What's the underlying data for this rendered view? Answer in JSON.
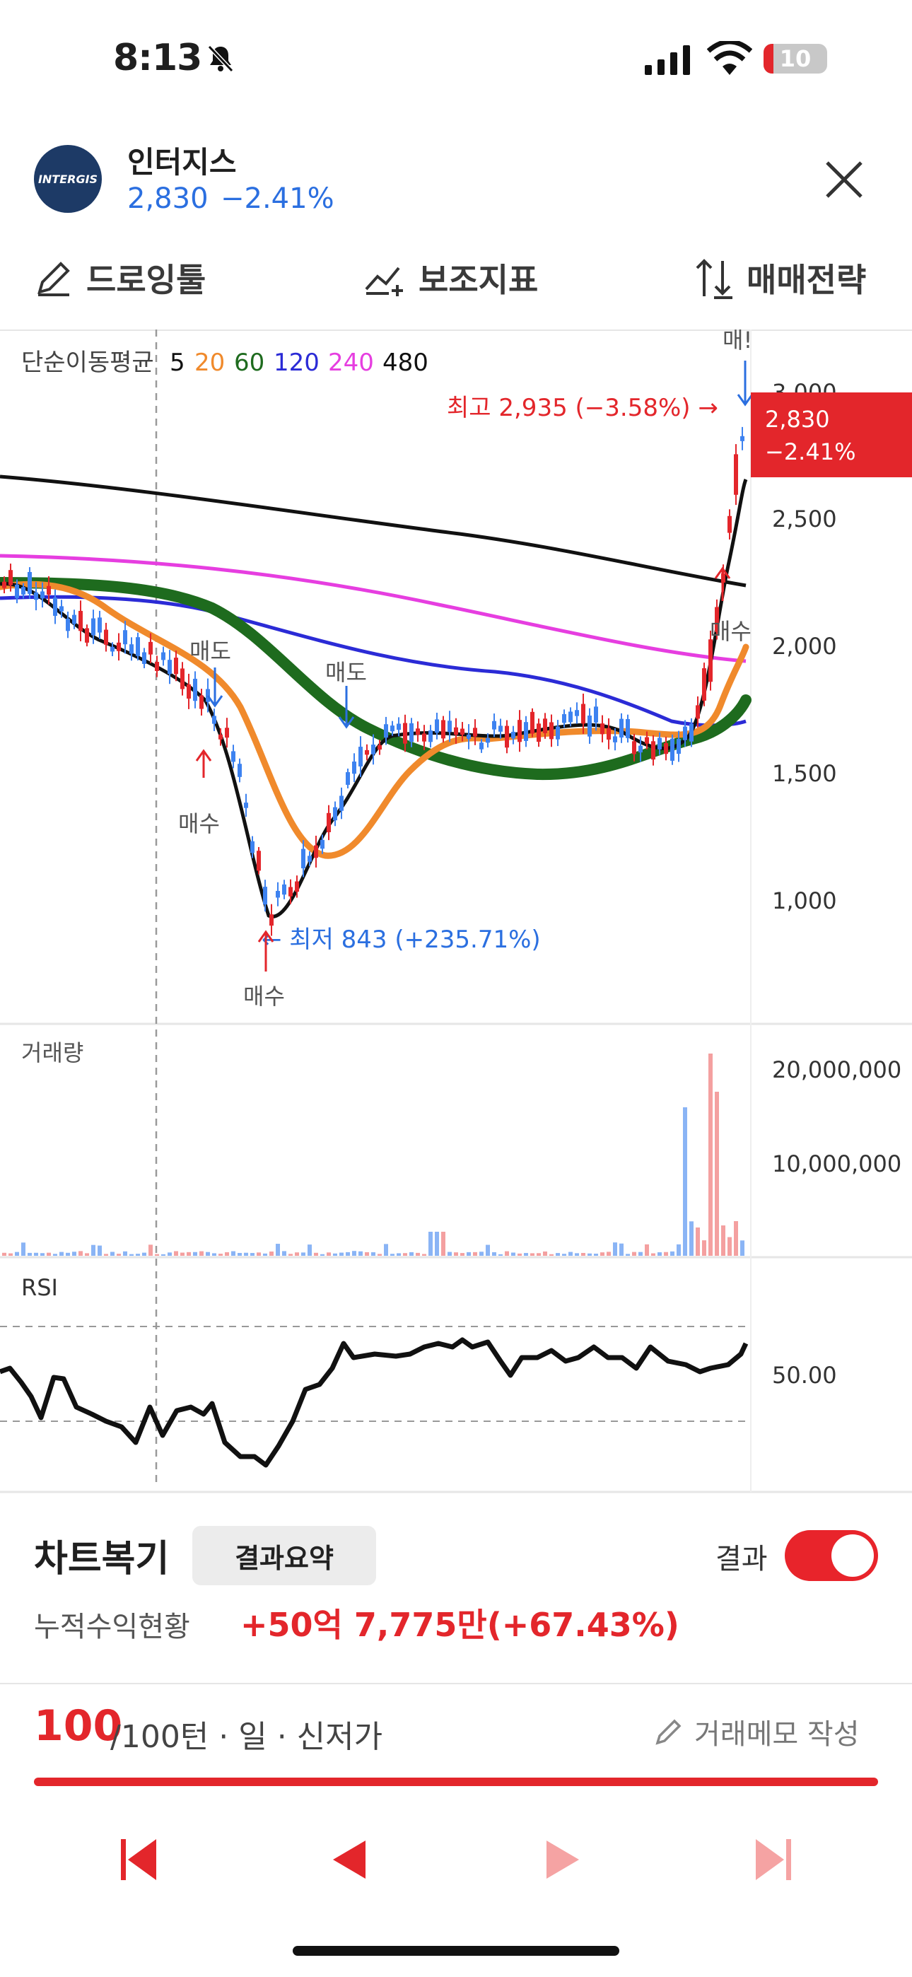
{
  "status": {
    "time": "8:13",
    "battery": "10"
  },
  "stock": {
    "logo_text": "INTERGIS",
    "name": "인터지스",
    "price": "2,830",
    "change": "−2.41%"
  },
  "toolbar": {
    "draw": "드로잉툴",
    "indicator": "보조지표",
    "strategy": "매매전략"
  },
  "chart": {
    "ma_title": "단순이동평균",
    "ma_periods": [
      {
        "label": "5",
        "color": "#111111"
      },
      {
        "label": "20",
        "color": "#f08a2c"
      },
      {
        "label": "60",
        "color": "#1e6b1e"
      },
      {
        "label": "120",
        "color": "#2b2bd6"
      },
      {
        "label": "240",
        "color": "#e63ee0"
      },
      {
        "label": "480",
        "color": "#111111"
      }
    ],
    "y_ticks": [
      "3,000",
      "2,500",
      "2,000",
      "1,500",
      "1,000"
    ],
    "high_label": "최고 2,935 (−3.58%) →",
    "low_label": "← 최저 843 (+235.71%)",
    "price_tag_price": "2,830",
    "price_tag_change": "−2.41%",
    "trade_marks": {
      "sell1": "매도",
      "buy1": "매수",
      "sell2": "매도",
      "buy2": "매수",
      "buy3": "매수",
      "sell3": "매!"
    },
    "volume_label": "거래량",
    "volume_ticks": [
      "20,000,000",
      "10,000,000"
    ],
    "rsi_label": "RSI",
    "rsi_tick": "50.00",
    "colors": {
      "up": "#e3262b",
      "down": "#3d82f0",
      "up_vol": "#f4a0a0",
      "down_vol": "#8ab4f5"
    }
  },
  "replay": {
    "title": "차트복기",
    "summary_button": "결과요약",
    "result_label": "결과",
    "cum_label": "누적수익현황",
    "cum_value": "+50억 7,775만(+67.43%)",
    "turn_current": "100",
    "turn_rest": "/100턴 · 일 · 신저가",
    "memo": "거래메모 작성"
  }
}
